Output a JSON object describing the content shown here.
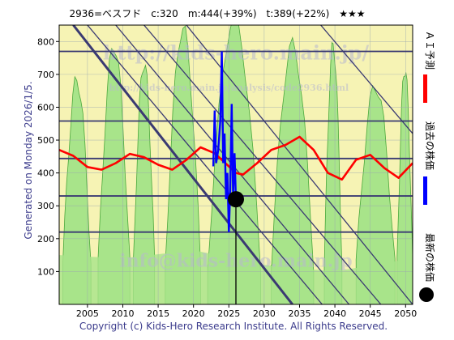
{
  "header": {
    "text": "2936=ベスフド　c:320　m:444(+39%)　t:389(+22%)　★★★"
  },
  "side_label": "Generated on Monday 2026/1/5.",
  "watermarks": {
    "top": "http://kids-hero.main.jp/",
    "sub": "http://kids-hero.main.jp/analysis/code2936.html",
    "bottom": "info@kids-hero.main.jp"
  },
  "copyright": "Copyright (c) Kids-Hero Research Institute. All Rights Reserved.",
  "legend": {
    "ai": "ＡＩ予測",
    "past": "過去の株価",
    "latest": "最新の株価"
  },
  "colors": {
    "ai": "#ff0000",
    "past": "#0000ff",
    "latest": "#000000",
    "green_fill": "#a8e48a",
    "yellow_fill": "#f6f3b4",
    "hline": "#3a3a72",
    "diag": "#3a3a72"
  },
  "chart_data": {
    "type": "line",
    "xlim": [
      2001,
      2051
    ],
    "ylim": [
      0,
      850
    ],
    "x_ticks": [
      2005,
      2010,
      2015,
      2020,
      2025,
      2030,
      2035,
      2040,
      2045,
      2050
    ],
    "y_ticks": [
      100,
      200,
      300,
      400,
      500,
      600,
      700,
      800
    ],
    "grid": true,
    "horizontal_levels": [
      220,
      330,
      444,
      558,
      770
    ],
    "diagonal_lines": [
      {
        "x1": 2005.0,
        "y1": 850,
        "x2": 2038.2,
        "y2": 0
      },
      {
        "x1": 2009.0,
        "y1": 850,
        "x2": 2042.0,
        "y2": 0
      },
      {
        "x1": 2013.0,
        "y1": 850,
        "x2": 2046.5,
        "y2": 0
      },
      {
        "x1": 2019.0,
        "y1": 850,
        "x2": 2051.0,
        "y2": 0
      },
      {
        "x1": 2038.0,
        "y1": 850,
        "x2": 2051.0,
        "y2": 520
      }
    ],
    "bold_diagonal": {
      "x1": 2003.0,
      "y1": 850,
      "x2": 2034.0,
      "y2": 0
    },
    "latest": {
      "year": 2026.0,
      "price": 320
    },
    "ai_forecast": {
      "name": "ＡＩ予測",
      "points": [
        [
          2001,
          470
        ],
        [
          2003,
          452
        ],
        [
          2005,
          418
        ],
        [
          2007,
          410
        ],
        [
          2009,
          430
        ],
        [
          2011,
          458
        ],
        [
          2013,
          448
        ],
        [
          2015,
          425
        ],
        [
          2017,
          410
        ],
        [
          2019,
          440
        ],
        [
          2021,
          478
        ],
        [
          2023,
          460
        ],
        [
          2025,
          420
        ],
        [
          2026,
          400
        ],
        [
          2027,
          395
        ],
        [
          2029,
          430
        ],
        [
          2031,
          470
        ],
        [
          2033,
          485
        ],
        [
          2035,
          510
        ],
        [
          2037,
          470
        ],
        [
          2039,
          400
        ],
        [
          2041,
          380
        ],
        [
          2043,
          440
        ],
        [
          2045,
          455
        ],
        [
          2047,
          415
        ],
        [
          2049,
          385
        ],
        [
          2051,
          430
        ]
      ]
    },
    "past_prices": {
      "name": "過去の株価",
      "points": [
        [
          2022.8,
          420
        ],
        [
          2023.0,
          590
        ],
        [
          2023.2,
          430
        ],
        [
          2023.5,
          470
        ],
        [
          2023.8,
          560
        ],
        [
          2024.0,
          770
        ],
        [
          2024.2,
          430
        ],
        [
          2024.4,
          520
        ],
        [
          2024.6,
          320
        ],
        [
          2024.8,
          400
        ],
        [
          2025.0,
          220
        ],
        [
          2025.2,
          350
        ],
        [
          2025.4,
          610
        ],
        [
          2025.6,
          330
        ],
        [
          2025.8,
          460
        ],
        [
          2026.0,
          320
        ]
      ]
    }
  }
}
